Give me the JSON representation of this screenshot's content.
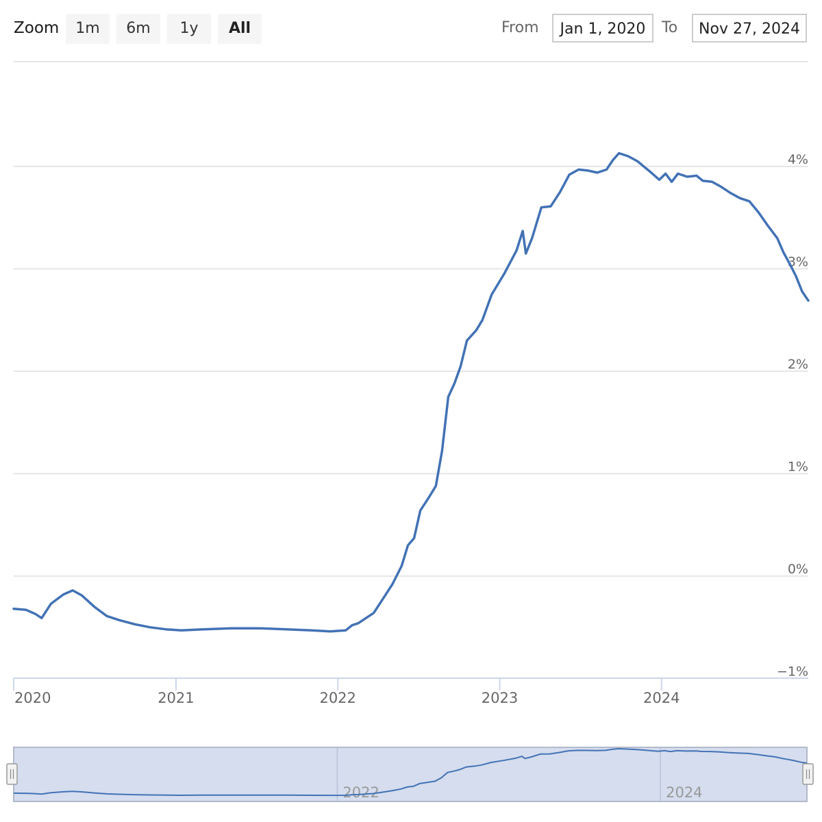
{
  "toolbar": {
    "zoom_label": "Zoom",
    "buttons": [
      "1m",
      "6m",
      "1y",
      "All"
    ],
    "active_button": "All",
    "from_label": "From",
    "from_value": "Jan 1, 2020",
    "to_label": "To",
    "to_value": "Nov 27, 2024"
  },
  "colors": {
    "series": "#4272b5",
    "grid": "#e6e6e6",
    "navigator_fill": "#d5ddee",
    "navigator_border": "#b3b9c9"
  },
  "icons": [
    "navigator-left-handle-icon",
    "navigator-right-handle-icon"
  ],
  "chart_data": {
    "type": "line",
    "title": "",
    "xlabel": "",
    "ylabel": "",
    "x_range": [
      "2020-01-01",
      "2024-11-27"
    ],
    "ylim": [
      -1,
      5
    ],
    "y_ticks": [
      "−1%",
      "0%",
      "1%",
      "2%",
      "3%",
      "4%"
    ],
    "y_tick_values": [
      -1,
      0,
      1,
      2,
      3,
      4
    ],
    "x_ticks": [
      "2020",
      "2021",
      "2022",
      "2023",
      "2024"
    ],
    "x_tick_values": [
      "2020-01-01",
      "2021-01-01",
      "2022-01-01",
      "2023-01-01",
      "2024-01-01"
    ],
    "navigator_ticks": [
      "2022",
      "2024"
    ],
    "navigator_tick_values": [
      "2022-01-01",
      "2024-01-01"
    ],
    "grid": true,
    "y_axis_position": "right",
    "series": [
      {
        "points": [
          [
            "2020-01-01",
            -0.32
          ],
          [
            "2020-01-29",
            -0.33
          ],
          [
            "2020-02-19",
            -0.37
          ],
          [
            "2020-03-04",
            -0.41
          ],
          [
            "2020-03-25",
            -0.27
          ],
          [
            "2020-04-22",
            -0.18
          ],
          [
            "2020-05-13",
            -0.14
          ],
          [
            "2020-06-03",
            -0.19
          ],
          [
            "2020-07-01",
            -0.3
          ],
          [
            "2020-07-29",
            -0.39
          ],
          [
            "2020-08-26",
            -0.43
          ],
          [
            "2020-09-30",
            -0.47
          ],
          [
            "2020-11-04",
            -0.5
          ],
          [
            "2020-12-09",
            -0.52
          ],
          [
            "2021-01-13",
            -0.53
          ],
          [
            "2021-03-03",
            -0.52
          ],
          [
            "2021-05-05",
            -0.51
          ],
          [
            "2021-07-07",
            -0.51
          ],
          [
            "2021-09-08",
            -0.52
          ],
          [
            "2021-11-03",
            -0.53
          ],
          [
            "2021-12-15",
            -0.54
          ],
          [
            "2022-01-19",
            -0.53
          ],
          [
            "2022-02-02",
            -0.48
          ],
          [
            "2022-02-16",
            -0.46
          ],
          [
            "2022-03-02",
            -0.42
          ],
          [
            "2022-03-23",
            -0.36
          ],
          [
            "2022-04-13",
            -0.22
          ],
          [
            "2022-05-04",
            -0.08
          ],
          [
            "2022-05-25",
            0.1
          ],
          [
            "2022-06-08",
            0.3
          ],
          [
            "2022-06-22",
            0.37
          ],
          [
            "2022-07-06",
            0.64
          ],
          [
            "2022-07-27",
            0.78
          ],
          [
            "2022-08-10",
            0.88
          ],
          [
            "2022-08-24",
            1.22
          ],
          [
            "2022-09-07",
            1.75
          ],
          [
            "2022-09-21",
            1.88
          ],
          [
            "2022-10-05",
            2.05
          ],
          [
            "2022-10-19",
            2.3
          ],
          [
            "2022-11-09",
            2.4
          ],
          [
            "2022-11-23",
            2.5
          ],
          [
            "2022-12-14",
            2.75
          ],
          [
            "2023-01-11",
            2.95
          ],
          [
            "2023-02-08",
            3.18
          ],
          [
            "2023-02-22",
            3.37
          ],
          [
            "2023-03-01",
            3.15
          ],
          [
            "2023-03-15",
            3.3
          ],
          [
            "2023-04-05",
            3.6
          ],
          [
            "2023-04-26",
            3.61
          ],
          [
            "2023-05-17",
            3.75
          ],
          [
            "2023-06-07",
            3.92
          ],
          [
            "2023-06-28",
            3.97
          ],
          [
            "2023-07-19",
            3.96
          ],
          [
            "2023-08-09",
            3.94
          ],
          [
            "2023-08-30",
            3.97
          ],
          [
            "2023-09-13",
            4.06
          ],
          [
            "2023-09-27",
            4.13
          ],
          [
            "2023-10-18",
            4.1
          ],
          [
            "2023-11-08",
            4.05
          ],
          [
            "2023-11-22",
            4.0
          ],
          [
            "2023-12-06",
            3.95
          ],
          [
            "2023-12-27",
            3.87
          ],
          [
            "2024-01-10",
            3.93
          ],
          [
            "2024-01-24",
            3.85
          ],
          [
            "2024-02-07",
            3.93
          ],
          [
            "2024-02-28",
            3.9
          ],
          [
            "2024-03-20",
            3.91
          ],
          [
            "2024-04-03",
            3.86
          ],
          [
            "2024-04-24",
            3.85
          ],
          [
            "2024-05-15",
            3.8
          ],
          [
            "2024-06-05",
            3.74
          ],
          [
            "2024-06-26",
            3.69
          ],
          [
            "2024-07-17",
            3.66
          ],
          [
            "2024-08-07",
            3.55
          ],
          [
            "2024-08-28",
            3.42
          ],
          [
            "2024-09-18",
            3.3
          ],
          [
            "2024-10-02",
            3.16
          ],
          [
            "2024-10-16",
            3.05
          ],
          [
            "2024-10-30",
            2.93
          ],
          [
            "2024-11-13",
            2.78
          ],
          [
            "2024-11-27",
            2.69
          ]
        ]
      }
    ]
  }
}
